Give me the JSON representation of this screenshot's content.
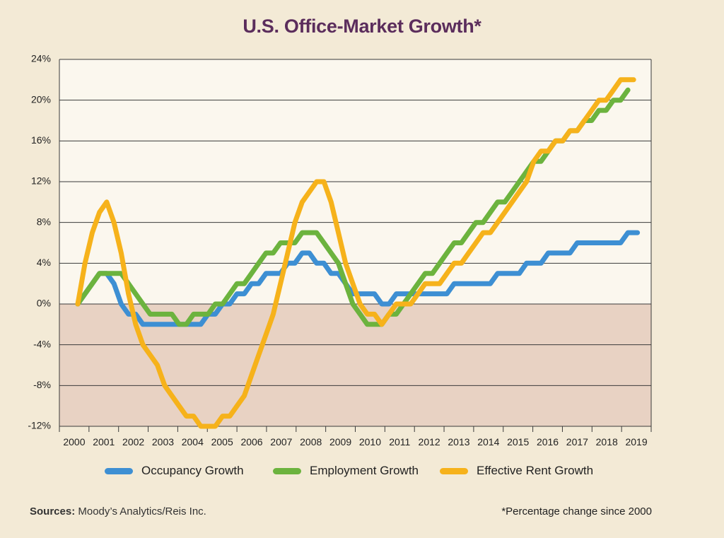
{
  "title": "U.S. Office-Market Growth*",
  "footer": {
    "sources_label": "Sources:",
    "sources_text": " Moody’s Analytics/Reis Inc.",
    "note": "*Percentage change since 2000"
  },
  "colors": {
    "background": "#f3ead6",
    "plot_positive": "#fbf7ee",
    "plot_negative": "#e8d2c3",
    "occupancy": "#3d8fd3",
    "employment": "#6cb33e",
    "rent": "#f6b21b",
    "title": "#5b2d5c"
  },
  "chart_data": {
    "type": "line",
    "title": "U.S. Office-Market Growth*",
    "xlabel": "",
    "ylabel": "",
    "ylim": [
      -12,
      24
    ],
    "xlim": [
      2000,
      2019.75
    ],
    "y_ticks": [
      24,
      20,
      16,
      12,
      8,
      4,
      0,
      -4,
      -8,
      -12
    ],
    "y_tick_labels": [
      "24%",
      "20%",
      "16%",
      "12%",
      "8%",
      "4%",
      "0%",
      "-4%",
      "-8%",
      "-12%"
    ],
    "x_tick_labels": [
      "2000",
      "2001",
      "2002",
      "2003",
      "2004",
      "2005",
      "2006",
      "2007",
      "2008",
      "2009",
      "2010",
      "2011",
      "2012",
      "2013",
      "2014",
      "2015",
      "2016",
      "2017",
      "2018",
      "2019"
    ],
    "grid": true,
    "legend_position": "bottom",
    "series": [
      {
        "name": "Occupancy Growth",
        "color": "#3d8fd3",
        "points": [
          [
            2000,
            0
          ],
          [
            2000.5,
            2
          ],
          [
            2000.75,
            3
          ],
          [
            2001,
            3
          ],
          [
            2001.25,
            2
          ],
          [
            2001.5,
            0
          ],
          [
            2001.75,
            -1
          ],
          [
            2002,
            -1
          ],
          [
            2002.25,
            -2
          ],
          [
            2003,
            -2
          ],
          [
            2003.5,
            -2
          ],
          [
            2004,
            -2
          ],
          [
            2004.25,
            -2
          ],
          [
            2004.5,
            -1
          ],
          [
            2004.75,
            -1
          ],
          [
            2005,
            0
          ],
          [
            2005.25,
            0
          ],
          [
            2005.5,
            1
          ],
          [
            2005.75,
            1
          ],
          [
            2006,
            2
          ],
          [
            2006.25,
            2
          ],
          [
            2006.5,
            3
          ],
          [
            2007,
            3
          ],
          [
            2007.25,
            4
          ],
          [
            2007.5,
            4
          ],
          [
            2007.75,
            5
          ],
          [
            2008,
            5
          ],
          [
            2008.25,
            4
          ],
          [
            2008.5,
            4
          ],
          [
            2008.75,
            3
          ],
          [
            2009,
            3
          ],
          [
            2009.25,
            2
          ],
          [
            2009.5,
            1
          ],
          [
            2010,
            1
          ],
          [
            2010.25,
            1
          ],
          [
            2010.5,
            0
          ],
          [
            2010.75,
            0
          ],
          [
            2011,
            1
          ],
          [
            2011.5,
            1
          ],
          [
            2012,
            1
          ],
          [
            2012.5,
            1
          ],
          [
            2012.75,
            1
          ],
          [
            2013,
            2
          ],
          [
            2013.5,
            2
          ],
          [
            2014,
            2
          ],
          [
            2014.25,
            2
          ],
          [
            2014.5,
            3
          ],
          [
            2015,
            3
          ],
          [
            2015.25,
            3
          ],
          [
            2015.5,
            4
          ],
          [
            2016,
            4
          ],
          [
            2016.25,
            5
          ],
          [
            2016.75,
            5
          ],
          [
            2017,
            5
          ],
          [
            2017.25,
            6
          ],
          [
            2017.75,
            6
          ],
          [
            2018,
            6
          ],
          [
            2018.75,
            6
          ],
          [
            2019,
            7
          ],
          [
            2019.33,
            7
          ]
        ]
      },
      {
        "name": "Employment Growth",
        "color": "#6cb33e",
        "points": [
          [
            2000,
            0
          ],
          [
            2000.5,
            2
          ],
          [
            2000.75,
            3
          ],
          [
            2001,
            3
          ],
          [
            2001.25,
            3
          ],
          [
            2001.5,
            3
          ],
          [
            2001.75,
            2
          ],
          [
            2002,
            1
          ],
          [
            2002.25,
            0
          ],
          [
            2002.5,
            -1
          ],
          [
            2002.75,
            -1
          ],
          [
            2003,
            -1
          ],
          [
            2003.25,
            -1
          ],
          [
            2003.5,
            -2
          ],
          [
            2003.75,
            -2
          ],
          [
            2004,
            -1
          ],
          [
            2004.25,
            -1
          ],
          [
            2004.5,
            -1
          ],
          [
            2004.75,
            0
          ],
          [
            2005,
            0
          ],
          [
            2005.25,
            1
          ],
          [
            2005.5,
            2
          ],
          [
            2005.75,
            2
          ],
          [
            2006,
            3
          ],
          [
            2006.25,
            4
          ],
          [
            2006.5,
            5
          ],
          [
            2006.75,
            5
          ],
          [
            2007,
            6
          ],
          [
            2007.25,
            6
          ],
          [
            2007.5,
            6
          ],
          [
            2007.75,
            7
          ],
          [
            2008,
            7
          ],
          [
            2008.25,
            7
          ],
          [
            2008.5,
            6
          ],
          [
            2008.75,
            5
          ],
          [
            2009,
            4
          ],
          [
            2009.25,
            2
          ],
          [
            2009.5,
            0
          ],
          [
            2009.75,
            -1
          ],
          [
            2010,
            -2
          ],
          [
            2010.25,
            -2
          ],
          [
            2010.5,
            -2
          ],
          [
            2010.75,
            -1
          ],
          [
            2011,
            -1
          ],
          [
            2011.25,
            0
          ],
          [
            2011.5,
            1
          ],
          [
            2011.75,
            2
          ],
          [
            2012,
            3
          ],
          [
            2012.25,
            3
          ],
          [
            2012.5,
            4
          ],
          [
            2012.75,
            5
          ],
          [
            2013,
            6
          ],
          [
            2013.25,
            6
          ],
          [
            2013.5,
            7
          ],
          [
            2013.75,
            8
          ],
          [
            2014,
            8
          ],
          [
            2014.25,
            9
          ],
          [
            2014.5,
            10
          ],
          [
            2014.75,
            10
          ],
          [
            2015,
            11
          ],
          [
            2015.25,
            12
          ],
          [
            2015.5,
            13
          ],
          [
            2015.75,
            14
          ],
          [
            2016,
            14
          ],
          [
            2016.25,
            15
          ],
          [
            2016.5,
            16
          ],
          [
            2016.75,
            16
          ],
          [
            2017,
            17
          ],
          [
            2017.25,
            17
          ],
          [
            2017.5,
            18
          ],
          [
            2017.75,
            18
          ],
          [
            2018,
            19
          ],
          [
            2018.25,
            19
          ],
          [
            2018.5,
            20
          ],
          [
            2018.75,
            20
          ],
          [
            2019,
            21
          ]
        ]
      },
      {
        "name": "Effective Rent Growth",
        "color": "#f6b21b",
        "points": [
          [
            2000,
            0
          ],
          [
            2000.25,
            4
          ],
          [
            2000.5,
            7
          ],
          [
            2000.75,
            9
          ],
          [
            2001,
            10
          ],
          [
            2001.25,
            8
          ],
          [
            2001.5,
            5
          ],
          [
            2001.75,
            1
          ],
          [
            2002,
            -2
          ],
          [
            2002.25,
            -4
          ],
          [
            2002.5,
            -5
          ],
          [
            2002.75,
            -6
          ],
          [
            2003,
            -8
          ],
          [
            2003.25,
            -9
          ],
          [
            2003.5,
            -10
          ],
          [
            2003.75,
            -11
          ],
          [
            2004,
            -11
          ],
          [
            2004.25,
            -12
          ],
          [
            2004.5,
            -12
          ],
          [
            2004.75,
            -12
          ],
          [
            2005,
            -11
          ],
          [
            2005.25,
            -11
          ],
          [
            2005.5,
            -10
          ],
          [
            2005.75,
            -9
          ],
          [
            2006,
            -7
          ],
          [
            2006.25,
            -5
          ],
          [
            2006.5,
            -3
          ],
          [
            2006.75,
            -1
          ],
          [
            2007,
            2
          ],
          [
            2007.25,
            5
          ],
          [
            2007.5,
            8
          ],
          [
            2007.75,
            10
          ],
          [
            2008,
            11
          ],
          [
            2008.25,
            12
          ],
          [
            2008.5,
            12
          ],
          [
            2008.75,
            10
          ],
          [
            2009,
            7
          ],
          [
            2009.25,
            4
          ],
          [
            2009.5,
            2
          ],
          [
            2009.75,
            0
          ],
          [
            2010,
            -1
          ],
          [
            2010.25,
            -1
          ],
          [
            2010.5,
            -2
          ],
          [
            2010.75,
            -1
          ],
          [
            2011,
            0
          ],
          [
            2011.25,
            0
          ],
          [
            2011.5,
            0
          ],
          [
            2011.75,
            1
          ],
          [
            2012,
            2
          ],
          [
            2012.25,
            2
          ],
          [
            2012.5,
            2
          ],
          [
            2012.75,
            3
          ],
          [
            2013,
            4
          ],
          [
            2013.25,
            4
          ],
          [
            2013.5,
            5
          ],
          [
            2013.75,
            6
          ],
          [
            2014,
            7
          ],
          [
            2014.25,
            7
          ],
          [
            2014.5,
            8
          ],
          [
            2014.75,
            9
          ],
          [
            2015,
            10
          ],
          [
            2015.25,
            11
          ],
          [
            2015.5,
            12
          ],
          [
            2015.75,
            14
          ],
          [
            2016,
            15
          ],
          [
            2016.25,
            15
          ],
          [
            2016.5,
            16
          ],
          [
            2016.75,
            16
          ],
          [
            2017,
            17
          ],
          [
            2017.25,
            17
          ],
          [
            2017.5,
            18
          ],
          [
            2017.75,
            19
          ],
          [
            2018,
            20
          ],
          [
            2018.25,
            20
          ],
          [
            2018.5,
            21
          ],
          [
            2018.75,
            22
          ],
          [
            2019,
            22
          ],
          [
            2019.2,
            22
          ]
        ]
      }
    ]
  }
}
